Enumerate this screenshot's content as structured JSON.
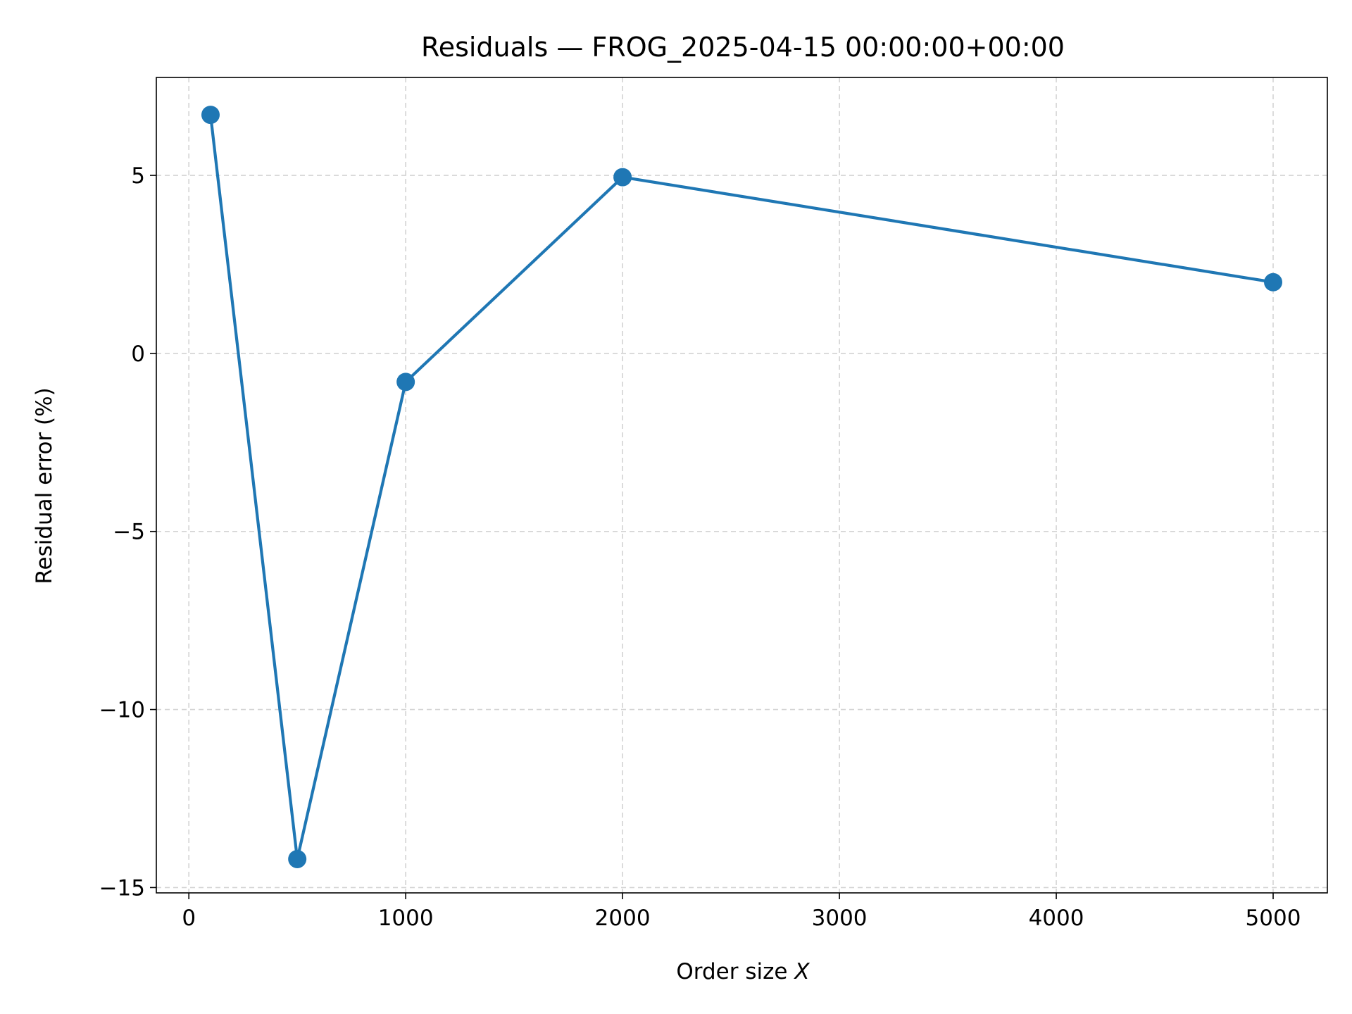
{
  "chart_data": {
    "type": "line",
    "title": "Residuals — FROG_2025-04-15 00:00:00+00:00",
    "xlabel_text": "Order size ",
    "xlabel_var": "X",
    "ylabel": "Residual error (%)",
    "xlim": [
      -150,
      5250
    ],
    "ylim": [
      -15.15,
      7.75
    ],
    "xticks": [
      0,
      1000,
      2000,
      3000,
      4000,
      5000
    ],
    "xtick_labels": [
      "0",
      "1000",
      "2000",
      "3000",
      "4000",
      "5000"
    ],
    "yticks": [
      5,
      0,
      -5,
      -10,
      -15
    ],
    "ytick_labels": [
      "5",
      "0",
      "−5",
      "−10",
      "−15"
    ],
    "grid": true,
    "series": [
      {
        "x": [
          100,
          500,
          1000,
          2000,
          5000
        ],
        "y": [
          6.7,
          -14.2,
          -0.8,
          4.95,
          2.0
        ],
        "color": "#1f77b4",
        "marker": "circle"
      }
    ]
  }
}
